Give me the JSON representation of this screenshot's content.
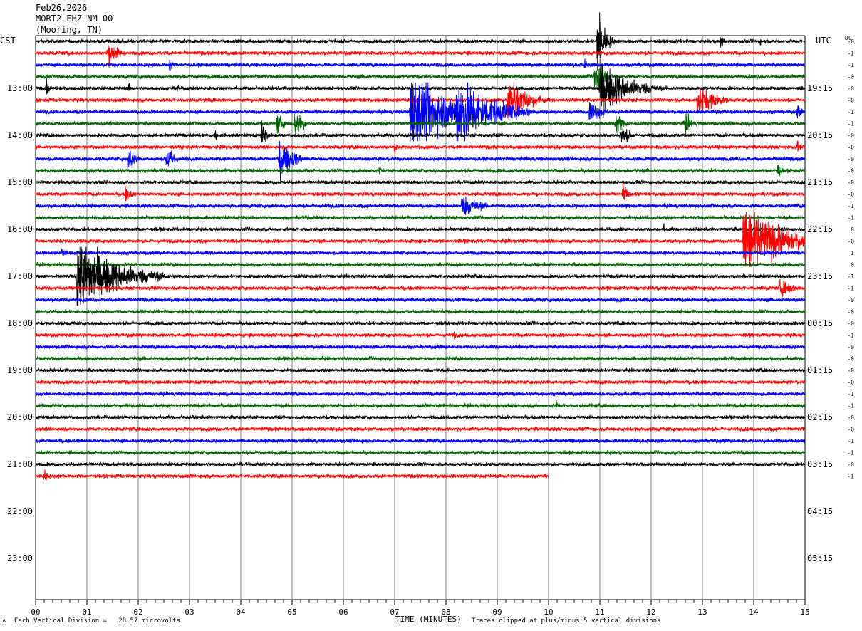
{
  "header": {
    "date": "Feb26,2026",
    "station": "MORT2 EHZ NM 00",
    "location": "(Mooring, TN)"
  },
  "left_zone_label": "CST",
  "right_zone_label": "UTC",
  "dc_header": "DC",
  "footer": {
    "scale_text": "Each Vertical Division =   28.57 microvolts",
    "clip_text": "Traces clipped at plus/minus 5 vertical divisions",
    "corner_mark": "ʌ"
  },
  "colors": {
    "trace_cycle": [
      "#000000",
      "#ff0000",
      "#0000ff",
      "#006400"
    ],
    "grid": "#808080"
  },
  "chart_data": {
    "type": "line",
    "title": "Feb26,2026",
    "xlabel": "TIME (MINUTES)",
    "ylabel": "",
    "xlim": [
      0,
      15
    ],
    "x_ticks": [
      "00",
      "01",
      "02",
      "03",
      "04",
      "05",
      "06",
      "07",
      "08",
      "09",
      "10",
      "11",
      "12",
      "13",
      "14",
      "15"
    ],
    "left_hour_labels": [
      "13:00",
      "14:00",
      "15:00",
      "16:00",
      "17:00",
      "18:00",
      "19:00",
      "20:00",
      "21:00",
      "22:00",
      "23:00"
    ],
    "right_hour_labels": [
      "19:15",
      "20:15",
      "21:15",
      "22:15",
      "23:15",
      "00:15",
      "01:15",
      "02:15",
      "03:15",
      "04:15",
      "05:15"
    ],
    "lines_per_hour": 4,
    "minutes_per_line": 15,
    "traces_total": 38,
    "last_trace_end_minute": 10,
    "dc_offsets": [
      "-0",
      "-1",
      "-1",
      "-0",
      "-0",
      "-0",
      "-1",
      "-1",
      "-0",
      "-0",
      "-0",
      "-0",
      "-0",
      "-0",
      "-1",
      "-1",
      "0",
      "-0",
      "1",
      "0",
      "-1",
      "-1",
      "-0",
      "-0",
      "-0",
      "-1",
      "-0",
      "-0",
      "-0",
      "-0",
      "-1",
      "-1",
      "-0",
      "-0",
      "-1",
      "-1",
      "-0",
      "-1"
    ],
    "events": [
      {
        "line": 0,
        "minute": 10.95,
        "amplitude": 5,
        "duration": 0.3
      },
      {
        "line": 0,
        "minute": 13.35,
        "amplitude": 1,
        "duration": 0.2
      },
      {
        "line": 0,
        "minute": 14.1,
        "amplitude": 0.8,
        "duration": 0.15
      },
      {
        "line": 1,
        "minute": 1.4,
        "amplitude": 1.6,
        "duration": 0.5
      },
      {
        "line": 2,
        "minute": 2.6,
        "amplitude": 1,
        "duration": 0.2
      },
      {
        "line": 2,
        "minute": 10.7,
        "amplitude": 0.8,
        "duration": 0.2
      },
      {
        "line": 3,
        "minute": 10.9,
        "amplitude": 2.5,
        "duration": 0.4
      },
      {
        "line": 4,
        "minute": 0.2,
        "amplitude": 1.2,
        "duration": 0.15
      },
      {
        "line": 4,
        "minute": 1.8,
        "amplitude": 0.8,
        "duration": 0.15
      },
      {
        "line": 4,
        "minute": 2.75,
        "amplitude": 0.8,
        "duration": 0.15
      },
      {
        "line": 4,
        "minute": 11.0,
        "amplitude": 3.5,
        "duration": 1.2
      },
      {
        "line": 5,
        "minute": 9.2,
        "amplitude": 3,
        "duration": 0.8
      },
      {
        "line": 5,
        "minute": 12.9,
        "amplitude": 2,
        "duration": 0.8
      },
      {
        "line": 6,
        "minute": 7.3,
        "amplitude": 5,
        "duration": 1.8
      },
      {
        "line": 6,
        "minute": 8.2,
        "amplitude": 5,
        "duration": 1.4
      },
      {
        "line": 6,
        "minute": 10.8,
        "amplitude": 1.5,
        "duration": 0.6
      },
      {
        "line": 6,
        "minute": 14.85,
        "amplitude": 1.2,
        "duration": 0.2
      },
      {
        "line": 7,
        "minute": 4.7,
        "amplitude": 1.5,
        "duration": 0.3
      },
      {
        "line": 7,
        "minute": 5.05,
        "amplitude": 2,
        "duration": 0.35
      },
      {
        "line": 7,
        "minute": 11.3,
        "amplitude": 1.5,
        "duration": 0.4
      },
      {
        "line": 7,
        "minute": 12.65,
        "amplitude": 1.5,
        "duration": 0.3
      },
      {
        "line": 8,
        "minute": 4.4,
        "amplitude": 2,
        "duration": 0.2
      },
      {
        "line": 8,
        "minute": 11.4,
        "amplitude": 1.2,
        "duration": 0.5
      },
      {
        "line": 8,
        "minute": 3.5,
        "amplitude": 0.8,
        "duration": 0.1
      },
      {
        "line": 9,
        "minute": 7.0,
        "amplitude": 0.8,
        "duration": 0.2
      },
      {
        "line": 9,
        "minute": 14.85,
        "amplitude": 1,
        "duration": 0.15
      },
      {
        "line": 10,
        "minute": 1.8,
        "amplitude": 1.8,
        "duration": 0.3
      },
      {
        "line": 10,
        "minute": 2.55,
        "amplitude": 1.8,
        "duration": 0.35
      },
      {
        "line": 10,
        "minute": 4.75,
        "amplitude": 2.5,
        "duration": 0.6
      },
      {
        "line": 11,
        "minute": 6.7,
        "amplitude": 0.8,
        "duration": 0.2
      },
      {
        "line": 11,
        "minute": 14.45,
        "amplitude": 1.2,
        "duration": 0.2
      },
      {
        "line": 13,
        "minute": 1.75,
        "amplitude": 1,
        "duration": 0.35
      },
      {
        "line": 13,
        "minute": 11.45,
        "amplitude": 1.5,
        "duration": 0.2
      },
      {
        "line": 14,
        "minute": 8.3,
        "amplitude": 1.5,
        "duration": 0.8
      },
      {
        "line": 16,
        "minute": 12.25,
        "amplitude": 0.8,
        "duration": 0.1
      },
      {
        "line": 17,
        "minute": 13.8,
        "amplitude": 5,
        "duration": 1.4
      },
      {
        "line": 18,
        "minute": 0.5,
        "amplitude": 0.6,
        "duration": 0.5
      },
      {
        "line": 20,
        "minute": 0.8,
        "amplitude": 5,
        "duration": 1.6
      },
      {
        "line": 21,
        "minute": 14.5,
        "amplitude": 1,
        "duration": 0.9
      },
      {
        "line": 25,
        "minute": 8.15,
        "amplitude": 0.6,
        "duration": 0.3
      },
      {
        "line": 31,
        "minute": 10.15,
        "amplitude": 0.8,
        "duration": 0.1
      },
      {
        "line": 37,
        "minute": 0.15,
        "amplitude": 1,
        "duration": 0.3
      }
    ]
  }
}
